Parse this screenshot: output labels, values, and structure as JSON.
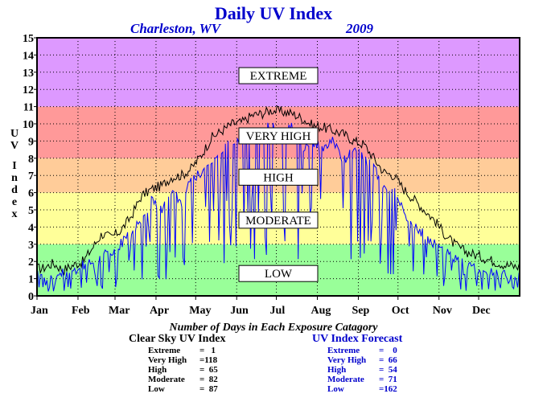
{
  "chart_data": {
    "type": "line",
    "title": "Daily UV Index",
    "location": "Charleston, WV",
    "year": "2009",
    "ylabel": "UV Index",
    "ylim": [
      0,
      15
    ],
    "yticks": [
      "0",
      "1",
      "2",
      "3",
      "4",
      "5",
      "6",
      "7",
      "8",
      "9",
      "10",
      "11",
      "12",
      "13",
      "14",
      "15"
    ],
    "months": [
      "Jan",
      "Feb",
      "Mar",
      "Apr",
      "May",
      "Jun",
      "Jul",
      "Aug",
      "Sep",
      "Oct",
      "Nov",
      "Dec"
    ],
    "grid": true,
    "bands": [
      {
        "label": "LOW",
        "from": 0,
        "to": 3,
        "color": "#99ff99",
        "label_y": 1.3
      },
      {
        "label": "MODERATE",
        "from": 3,
        "to": 6,
        "color": "#ffff99",
        "label_y": 4.4
      },
      {
        "label": "HIGH",
        "from": 6,
        "to": 8,
        "color": "#ffcc99",
        "label_y": 6.9
      },
      {
        "label": "VERY HIGH",
        "from": 8,
        "to": 11,
        "color": "#ff9999",
        "label_y": 9.3
      },
      {
        "label": "EXTREME",
        "from": 11,
        "to": 15,
        "color": "#dd99ff",
        "label_y": 12.8
      }
    ],
    "series": [
      {
        "color": "#000000",
        "monthly": [
          [
            1.6,
            1.9,
            1.5,
            1.8
          ],
          [
            2.0,
            2.8,
            3.6,
            3.4
          ],
          [
            3.8,
            4.6,
            5.8,
            6.2
          ],
          [
            6.4,
            6.9,
            7.0,
            7.4
          ],
          [
            8.2,
            9.2,
            9.6,
            10.0
          ],
          [
            10.1,
            10.5,
            10.6,
            10.8
          ],
          [
            10.7,
            10.6,
            10.3,
            9.9
          ],
          [
            9.8,
            9.6,
            9.4,
            9.0
          ],
          [
            8.8,
            8.0,
            7.2,
            7.0
          ],
          [
            6.2,
            5.6,
            5.0,
            4.4
          ],
          [
            3.6,
            3.0,
            2.6,
            2.4
          ],
          [
            2.2,
            2.0,
            1.8,
            1.7
          ]
        ]
      },
      {
        "color": "#0000ff",
        "monthly": [
          [
            1.2,
            0.9,
            1.5,
            1.3
          ],
          [
            1.8,
            2.0,
            2.7,
            2.2
          ],
          [
            3.0,
            3.8,
            4.4,
            5.6
          ],
          [
            5.0,
            6.2,
            5.4,
            6.8
          ],
          [
            7.2,
            8.0,
            8.4,
            9.0
          ],
          [
            9.2,
            8.8,
            9.6,
            9.9
          ],
          [
            9.4,
            9.8,
            8.6,
            9.0
          ],
          [
            8.4,
            9.0,
            7.8,
            8.6
          ],
          [
            8.0,
            7.4,
            6.4,
            6.2
          ],
          [
            4.8,
            4.0,
            3.6,
            3.0
          ],
          [
            2.6,
            2.2,
            1.8,
            1.6
          ],
          [
            1.4,
            1.3,
            1.2,
            1.1
          ]
        ]
      }
    ]
  },
  "stats": {
    "caption": "Number of Days in Each Exposure Catagory",
    "clear_sky": {
      "title": "Clear Sky UV Index",
      "rows": [
        {
          "label": "Extreme",
          "value": "=   1"
        },
        {
          "label": "Very High",
          "value": "=118"
        },
        {
          "label": "High",
          "value": "=  65"
        },
        {
          "label": "Moderate",
          "value": "=  82"
        },
        {
          "label": "Low",
          "value": "=  87"
        }
      ]
    },
    "forecast": {
      "title": "UV Index Forecast",
      "rows": [
        {
          "label": "Extreme",
          "value": "=    0"
        },
        {
          "label": "Very High",
          "value": "=  66"
        },
        {
          "label": "High",
          "value": "=  54"
        },
        {
          "label": "Moderate",
          "value": "=  71"
        },
        {
          "label": "Low",
          "value": "=162"
        }
      ]
    }
  }
}
